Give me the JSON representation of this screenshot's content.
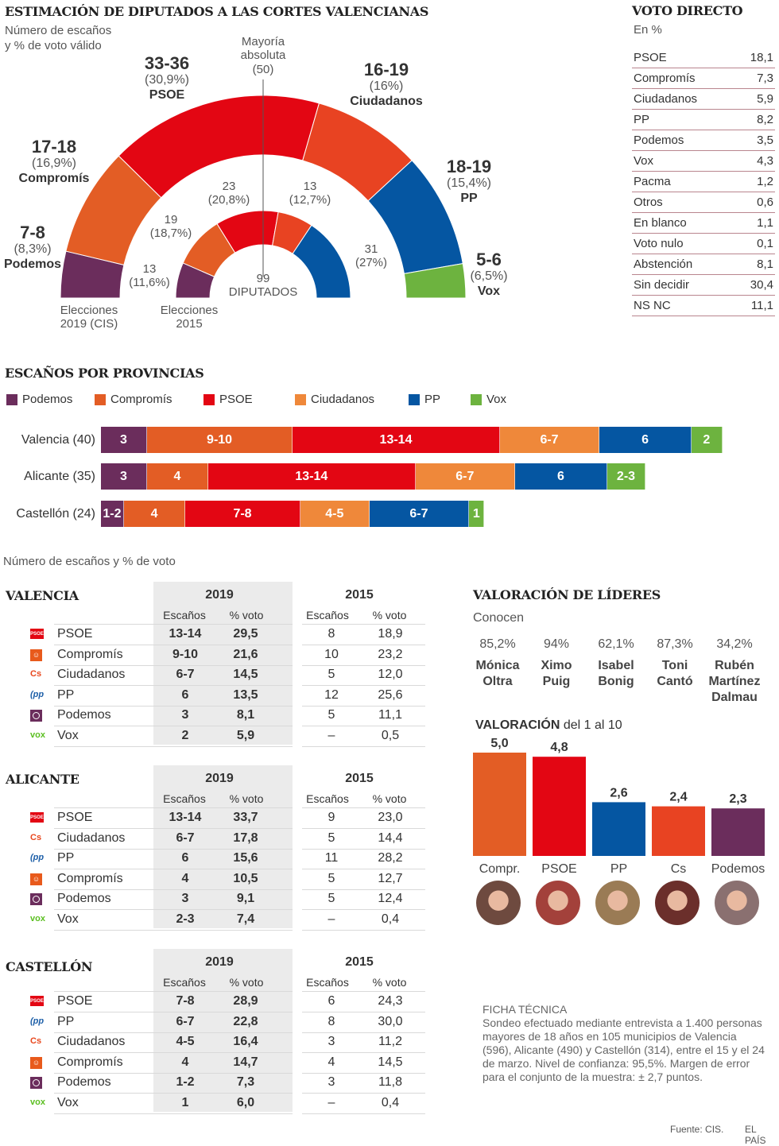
{
  "header": {
    "title": "ESTIMACIÓN DE DIPUTADOS A LAS CORTES VALENCIANAS",
    "subtitle_line1": "Número de escaños",
    "subtitle_line2": "y % de voto válido"
  },
  "colors": {
    "podemos": "#6b2d5c",
    "compromis": "#e35d25",
    "psoe": "#e30613",
    "ciudadanos": "#e84322",
    "ciudadanos_bar": "#ef883a",
    "pp": "#0556a2",
    "vox": "#6db33f"
  },
  "chart_data": [
    {
      "type": "pie",
      "title": "Estimación de diputados a las Cortes Valencianas",
      "subtitle": "Número de escaños y % de voto válido",
      "total_seats": 99,
      "majority_label": "Mayoría absoluta",
      "majority_value": "(50)",
      "center_number": "99",
      "center_label": "DIPUTADOS",
      "ring_2019_label_1": "Elecciones",
      "ring_2019_label_2": "2019 (CIS)",
      "ring_2015_label_1": "Elecciones",
      "ring_2015_label_2": "2015",
      "series_2019": [
        {
          "party": "Podemos",
          "key": "podemos",
          "seats": "7-8",
          "seats_low": 7,
          "seats_high": 8,
          "pct": "(8,3%)"
        },
        {
          "party": "Compromís",
          "key": "compromis",
          "seats": "17-18",
          "seats_low": 17,
          "seats_high": 18,
          "pct": "(16,9%)"
        },
        {
          "party": "PSOE",
          "key": "psoe",
          "seats": "33-36",
          "seats_low": 33,
          "seats_high": 36,
          "pct": "(30,9%)"
        },
        {
          "party": "Ciudadanos",
          "key": "ciudadanos",
          "seats": "16-19",
          "seats_low": 16,
          "seats_high": 19,
          "pct": "(16%)"
        },
        {
          "party": "PP",
          "key": "pp",
          "seats": "18-19",
          "seats_low": 18,
          "seats_high": 19,
          "pct": "(15,4%)"
        },
        {
          "party": "Vox",
          "key": "vox",
          "seats": "5-6",
          "seats_low": 5,
          "seats_high": 6,
          "pct": "(6,5%)"
        }
      ],
      "series_2015": [
        {
          "party": "Podemos",
          "key": "podemos",
          "seats": 13,
          "seats_label": "13",
          "pct": "(11,6%)"
        },
        {
          "party": "Compromís",
          "key": "compromis",
          "seats": 19,
          "seats_label": "19",
          "pct": "(18,7%)"
        },
        {
          "party": "PSOE",
          "key": "psoe",
          "seats": 23,
          "seats_label": "23",
          "pct": "(20,8%)"
        },
        {
          "party": "Ciudadanos",
          "key": "ciudadanos",
          "seats": 13,
          "seats_label": "13",
          "pct": "(12,7%)"
        },
        {
          "party": "PP",
          "key": "pp",
          "seats": 31,
          "seats_label": "31",
          "pct": "(27%)"
        }
      ]
    },
    {
      "type": "bar",
      "title": "ESCAÑOS POR PROVINCIAS",
      "orientation": "horizontal-stacked",
      "legend": [
        "Podemos",
        "Compromís",
        "PSOE",
        "Ciudadanos",
        "PP",
        "Vox"
      ],
      "legend_keys": [
        "podemos",
        "compromis",
        "psoe",
        "ciudadanos_bar",
        "pp",
        "vox"
      ],
      "categories": [
        "Valencia (40)",
        "Alicante (35)",
        "Castellón (24)"
      ],
      "rows": [
        {
          "label": "Valencia (40)",
          "segments": [
            {
              "key": "podemos",
              "label": "3",
              "value": 3
            },
            {
              "key": "compromis",
              "label": "9-10",
              "value": 9.5
            },
            {
              "key": "psoe",
              "label": "13-14",
              "value": 13.5
            },
            {
              "key": "ciudadanos_bar",
              "label": "6-7",
              "value": 6.5
            },
            {
              "key": "pp",
              "label": "6",
              "value": 6
            },
            {
              "key": "vox",
              "label": "2",
              "value": 2
            }
          ]
        },
        {
          "label": "Alicante (35)",
          "segments": [
            {
              "key": "podemos",
              "label": "3",
              "value": 3
            },
            {
              "key": "compromis",
              "label": "4",
              "value": 4
            },
            {
              "key": "psoe",
              "label": "13-14",
              "value": 13.5
            },
            {
              "key": "ciudadanos_bar",
              "label": "6-7",
              "value": 6.5
            },
            {
              "key": "pp",
              "label": "6",
              "value": 6
            },
            {
              "key": "vox",
              "label": "2-3",
              "value": 2.5
            }
          ]
        },
        {
          "label": "Castellón (24)",
          "segments": [
            {
              "key": "podemos",
              "label": "1-2",
              "value": 1.5
            },
            {
              "key": "compromis",
              "label": "4",
              "value": 4
            },
            {
              "key": "psoe",
              "label": "7-8",
              "value": 7.5
            },
            {
              "key": "ciudadanos_bar",
              "label": "4-5",
              "value": 4.5
            },
            {
              "key": "pp",
              "label": "6-7",
              "value": 6.5
            },
            {
              "key": "vox",
              "label": "1",
              "value": 1
            }
          ]
        }
      ]
    },
    {
      "type": "bar",
      "title": "VALORACIÓN",
      "subtitle": "del 1 al 10",
      "categories": [
        "Compr.",
        "PSOE",
        "PP",
        "Cs",
        "Podemos"
      ],
      "keys": [
        "compromis",
        "psoe",
        "pp",
        "ciudadanos",
        "podemos"
      ],
      "values": [
        5.0,
        4.8,
        2.6,
        2.4,
        2.3
      ],
      "value_labels": [
        "5,0",
        "4,8",
        "2,6",
        "2,4",
        "2,3"
      ],
      "ylim": [
        0,
        5
      ]
    }
  ],
  "voto_directo": {
    "title": "VOTO DIRECTO",
    "unit": "En %",
    "rows": [
      {
        "label": "PSOE",
        "value": "18,1"
      },
      {
        "label": "Compromís",
        "value": "7,3"
      },
      {
        "label": "Ciudadanos",
        "value": "5,9"
      },
      {
        "label": "PP",
        "value": "8,2"
      },
      {
        "label": "Podemos",
        "value": "3,5"
      },
      {
        "label": "Vox",
        "value": "4,3"
      },
      {
        "label": "Pacma",
        "value": "1,2"
      },
      {
        "label": "Otros",
        "value": "0,6"
      },
      {
        "label": "En blanco",
        "value": "1,1"
      },
      {
        "label": "Voto nulo",
        "value": "0,1"
      },
      {
        "label": "Abstención",
        "value": "8,1"
      },
      {
        "label": "Sin decidir",
        "value": "30,4"
      },
      {
        "label": "NS NC",
        "value": "11,1"
      }
    ]
  },
  "tables": {
    "subtitle": "Número de escaños y % de voto",
    "year_2019": "2019",
    "year_2015": "2015",
    "col_seats": "Escaños",
    "col_pct": "% voto",
    "provinces": [
      {
        "name": "VALENCIA",
        "rows": [
          {
            "logo": "psoe",
            "party": "PSOE",
            "s19": "13-14",
            "p19": "29,5",
            "s15": "8",
            "p15": "18,9"
          },
          {
            "logo": "compromis",
            "party": "Compromís",
            "s19": "9-10",
            "p19": "21,6",
            "s15": "10",
            "p15": "23,2"
          },
          {
            "logo": "ciudadanos",
            "party": "Ciudadanos",
            "s19": "6-7",
            "p19": "14,5",
            "s15": "5",
            "p15": "12,0"
          },
          {
            "logo": "pp",
            "party": "PP",
            "s19": "6",
            "p19": "13,5",
            "s15": "12",
            "p15": "25,6"
          },
          {
            "logo": "podemos",
            "party": "Podemos",
            "s19": "3",
            "p19": "8,1",
            "s15": "5",
            "p15": "11,1"
          },
          {
            "logo": "vox",
            "party": "Vox",
            "s19": "2",
            "p19": "5,9",
            "s15": "–",
            "p15": "0,5"
          }
        ]
      },
      {
        "name": "ALICANTE",
        "rows": [
          {
            "logo": "psoe",
            "party": "PSOE",
            "s19": "13-14",
            "p19": "33,7",
            "s15": "9",
            "p15": "23,0"
          },
          {
            "logo": "ciudadanos",
            "party": "Ciudadanos",
            "s19": "6-7",
            "p19": "17,8",
            "s15": "5",
            "p15": "14,4"
          },
          {
            "logo": "pp",
            "party": "PP",
            "s19": "6",
            "p19": "15,6",
            "s15": "11",
            "p15": "28,2"
          },
          {
            "logo": "compromis",
            "party": "Compromís",
            "s19": "4",
            "p19": "10,5",
            "s15": "5",
            "p15": "12,7"
          },
          {
            "logo": "podemos",
            "party": "Podemos",
            "s19": "3",
            "p19": "9,1",
            "s15": "5",
            "p15": "12,4"
          },
          {
            "logo": "vox",
            "party": "Vox",
            "s19": "2-3",
            "p19": "7,4",
            "s15": "–",
            "p15": "0,4"
          }
        ]
      },
      {
        "name": "CASTELLÓN",
        "rows": [
          {
            "logo": "psoe",
            "party": "PSOE",
            "s19": "7-8",
            "p19": "28,9",
            "s15": "6",
            "p15": "24,3"
          },
          {
            "logo": "pp",
            "party": "PP",
            "s19": "6-7",
            "p19": "22,8",
            "s15": "8",
            "p15": "30,0"
          },
          {
            "logo": "ciudadanos",
            "party": "Ciudadanos",
            "s19": "4-5",
            "p19": "16,4",
            "s15": "3",
            "p15": "11,2"
          },
          {
            "logo": "compromis",
            "party": "Compromís",
            "s19": "4",
            "p19": "14,7",
            "s15": "4",
            "p15": "14,5"
          },
          {
            "logo": "podemos",
            "party": "Podemos",
            "s19": "1-2",
            "p19": "7,3",
            "s15": "3",
            "p15": "11,8"
          },
          {
            "logo": "vox",
            "party": "Vox",
            "s19": "1",
            "p19": "6,0",
            "s15": "–",
            "p15": "0,4"
          }
        ]
      }
    ],
    "logo_text": {
      "psoe": "PSOE",
      "compromis": "☺",
      "ciudadanos": "Cs",
      "pp": "(pp",
      "vox": "vox"
    }
  },
  "leaders": {
    "title": "VALORACIÓN DE LÍDERES",
    "known_label": "Conocen",
    "rating_title_bold": "VALORACIÓN",
    "rating_title_rest": " del 1 al 10",
    "people": [
      {
        "known": "85,2%",
        "name1": "Mónica",
        "name2": "Oltra",
        "name3": "",
        "party": "Compr.",
        "photo_tone": "#6e4a3f"
      },
      {
        "known": "94%",
        "name1": "Ximo",
        "name2": "Puig",
        "name3": "",
        "party": "PSOE",
        "photo_tone": "#a3413b"
      },
      {
        "known": "62,1%",
        "name1": "Isabel",
        "name2": "Bonig",
        "name3": "",
        "party": "PP",
        "photo_tone": "#9a7b55"
      },
      {
        "known": "87,3%",
        "name1": "Toni",
        "name2": "Cantó",
        "name3": "",
        "party": "Cs",
        "photo_tone": "#6b2f2b"
      },
      {
        "known": "34,2%",
        "name1": "Rubén",
        "name2": "Martínez",
        "name3": "Dalmau",
        "party": "Podemos",
        "photo_tone": "#8a7070"
      }
    ]
  },
  "ficha": {
    "title": "FICHA TÉCNICA",
    "text": "Sondeo efectuado mediante entrevista a 1.400 personas mayores de 18 años en 105 municipios de Valencia (596), Alicante (490) y Castellón (314), entre el 15 y el 24 de marzo. Nivel de confianza: 95,5%. Margen de error para el conjunto de la muestra: ± 2,7 puntos."
  },
  "footer": {
    "source": "Fuente: CIS.",
    "brand": "EL PAÍS"
  }
}
